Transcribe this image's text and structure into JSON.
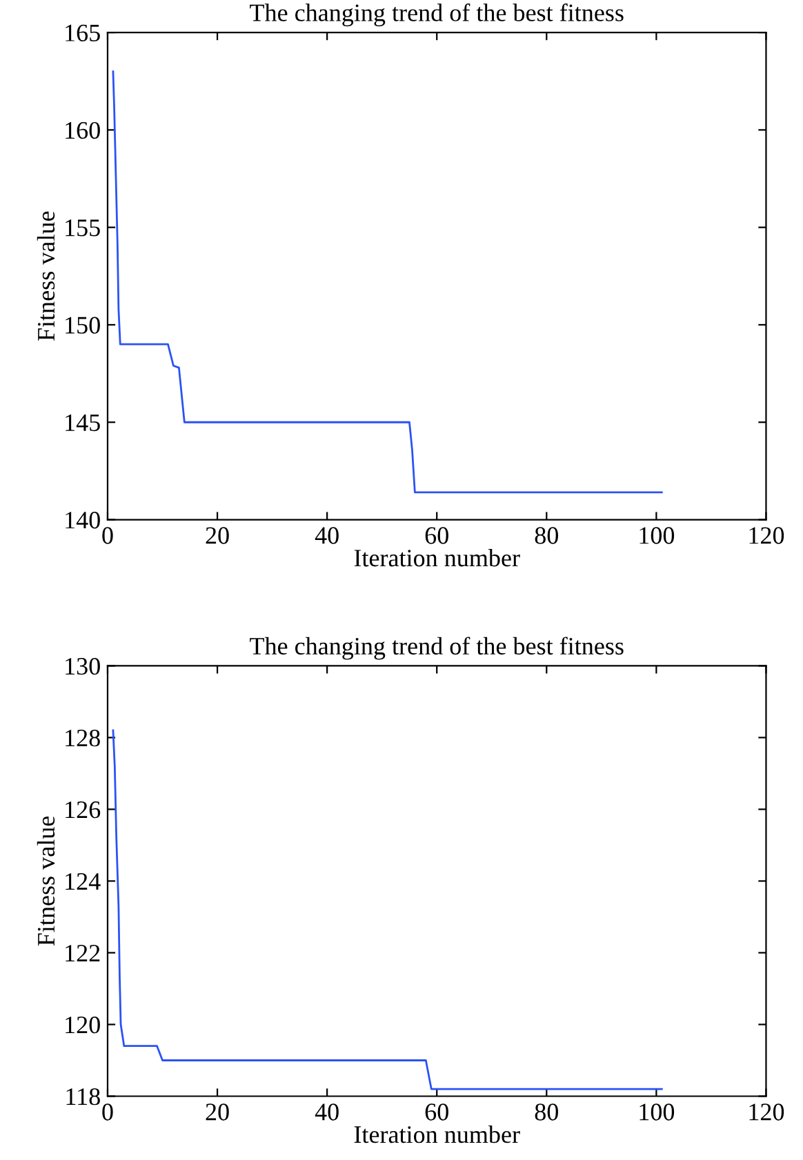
{
  "chart_data": [
    {
      "type": "line",
      "title": "The changing trend of the best fitness",
      "xlabel": "Iteration number",
      "ylabel": "Fitness value",
      "xlim": [
        0,
        120
      ],
      "ylim": [
        140,
        165
      ],
      "xticks": [
        0,
        20,
        40,
        60,
        80,
        100,
        120
      ],
      "yticks": [
        140,
        145,
        150,
        155,
        160,
        165
      ],
      "grid": false,
      "legend": false,
      "series": [
        {
          "color": "#2a52f5",
          "x": [
            1,
            1.2,
            1.5,
            1.8,
            2,
            2.3,
            11,
            12,
            13,
            14,
            55,
            55.5,
            56,
            101
          ],
          "values": [
            163,
            161.2,
            157.7,
            154.2,
            150.8,
            149,
            149,
            147.9,
            147.8,
            145,
            145,
            143.6,
            141.4,
            141.4
          ]
        }
      ]
    },
    {
      "type": "line",
      "title": "The changing trend of the best fitness",
      "xlabel": "Iteration number",
      "ylabel": "Fitness value",
      "xlim": [
        0,
        120
      ],
      "ylim": [
        118,
        130
      ],
      "xticks": [
        0,
        20,
        40,
        60,
        80,
        100,
        120
      ],
      "yticks": [
        118,
        120,
        122,
        124,
        126,
        128,
        130
      ],
      "grid": false,
      "legend": false,
      "series": [
        {
          "color": "#2a52f5",
          "x": [
            1,
            1.3,
            1.6,
            2,
            2.2,
            2.4,
            3,
            9,
            10,
            58,
            59,
            101
          ],
          "values": [
            128.2,
            127.2,
            125.2,
            123.3,
            121.3,
            120,
            119.4,
            119.4,
            119,
            119,
            118.2,
            118.2
          ]
        }
      ]
    }
  ]
}
